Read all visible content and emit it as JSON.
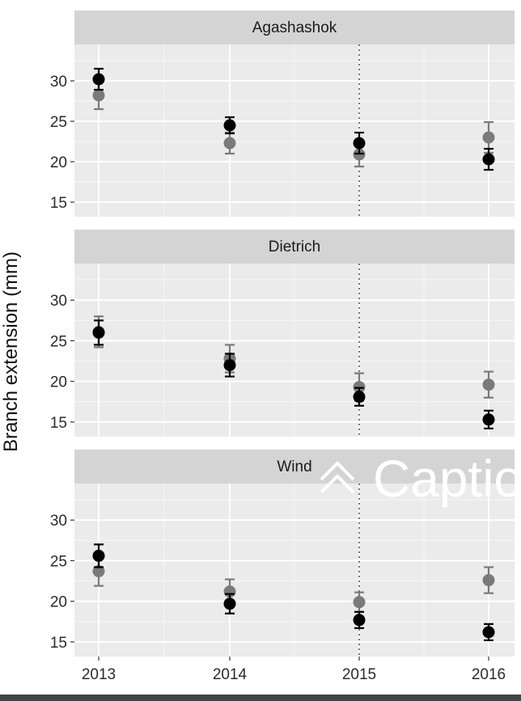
{
  "chart_data": {
    "type": "scatter",
    "ylabel": "Branch extension (mm)",
    "xlabel": "",
    "x_ticks": [
      "2013",
      "2014",
      "2015",
      "2016"
    ],
    "y_ticks": [
      15,
      20,
      25,
      30
    ],
    "ylim": [
      13.2,
      34.5
    ],
    "reference_line_x": "2015",
    "grid": true,
    "error_bars": true,
    "series_colors": [
      "#000000",
      "#7a7a7a"
    ],
    "panels": [
      {
        "title": "Agashashok",
        "series": [
          {
            "values": [
              30.2,
              24.5,
              22.3,
              20.3
            ],
            "err": [
              1.3,
              1.0,
              1.3,
              1.3
            ]
          },
          {
            "values": [
              28.2,
              22.3,
              20.9,
              23.0
            ],
            "err": [
              1.7,
              1.3,
              1.5,
              1.9
            ]
          }
        ]
      },
      {
        "title": "Dietrich",
        "series": [
          {
            "values": [
              26.0,
              22.0,
              18.1,
              15.3
            ],
            "err": [
              1.5,
              1.4,
              1.1,
              1.1
            ]
          },
          {
            "values": [
              26.1,
              22.8,
              19.3,
              19.6
            ],
            "err": [
              1.9,
              1.7,
              1.7,
              1.6
            ]
          }
        ]
      },
      {
        "title": "Wind",
        "series": [
          {
            "values": [
              25.6,
              19.7,
              17.7,
              16.2
            ],
            "err": [
              1.4,
              1.2,
              1.0,
              1.0
            ]
          },
          {
            "values": [
              23.7,
              21.2,
              19.9,
              22.6
            ],
            "err": [
              1.8,
              1.5,
              1.2,
              1.6
            ]
          }
        ]
      }
    ]
  },
  "overlay": {
    "chevron_icon": "double-chevron-up-icon",
    "text": "Captio"
  }
}
